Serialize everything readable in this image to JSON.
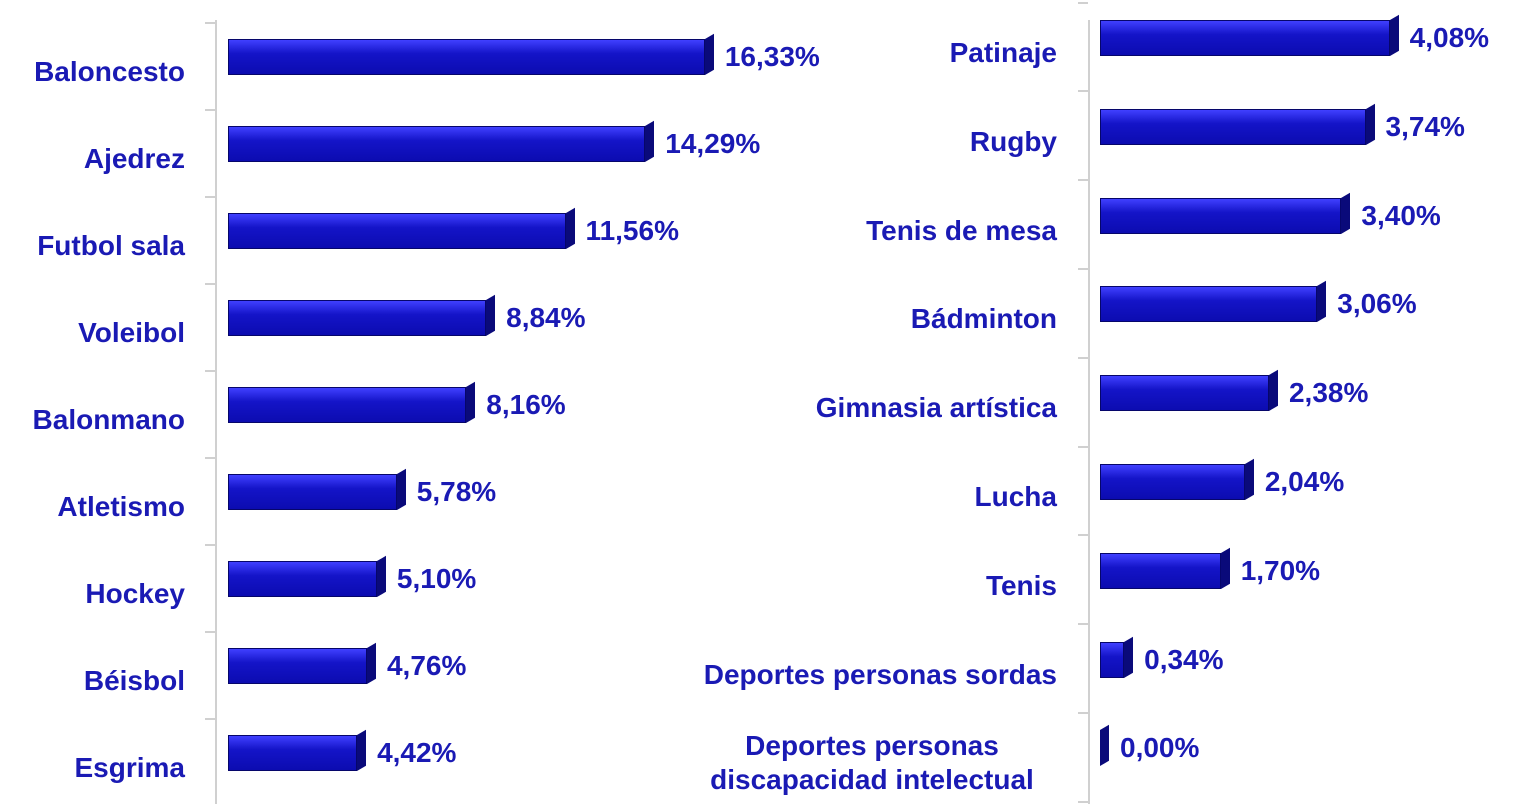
{
  "chart_data": [
    {
      "type": "bar",
      "orientation": "horizontal",
      "color": "#1414c8",
      "categories": [
        "Baloncesto",
        "Ajedrez",
        "Futbol sala",
        "Voleibol",
        "Balonmano",
        "Atletismo",
        "Hockey",
        "Béisbol",
        "Esgrima"
      ],
      "values": [
        16.33,
        14.29,
        11.56,
        8.84,
        8.16,
        5.78,
        5.1,
        4.76,
        4.42
      ],
      "value_labels": [
        "16,33%",
        "14,29%",
        "11,56%",
        "8,84%",
        "8,16%",
        "5,78%",
        "5,10%",
        "4,76%",
        "4,42%"
      ]
    },
    {
      "type": "bar",
      "orientation": "horizontal",
      "color": "#1414c8",
      "categories": [
        "Patinaje",
        "Rugby",
        "Tenis de mesa",
        "Bádminton",
        "Gimnasia artística",
        "Lucha",
        "Tenis",
        "Deportes personas sordas",
        "Deportes personas discapacidad intelectual"
      ],
      "values": [
        4.08,
        3.74,
        3.4,
        3.06,
        2.38,
        2.04,
        1.7,
        0.34,
        0.0
      ],
      "value_labels": [
        "4,08%",
        "3,74%",
        "3,40%",
        "3,06%",
        "2,38%",
        "2,04%",
        "1,70%",
        "0,34%",
        "0,00%"
      ]
    }
  ]
}
